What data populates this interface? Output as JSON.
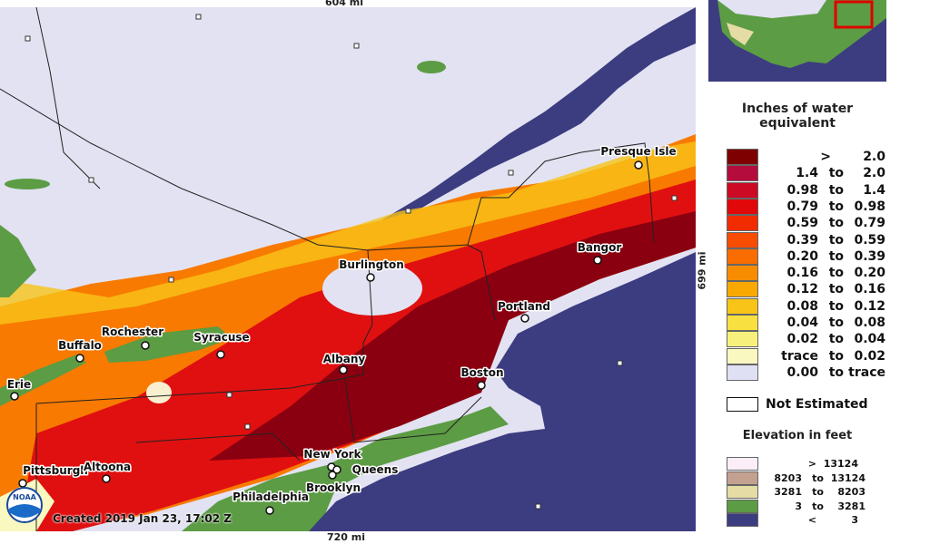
{
  "scale": {
    "top": "604 mi",
    "bottom": "720 mi",
    "right": "699 mi"
  },
  "cities": [
    {
      "label": "Presque Isle"
    },
    {
      "label": "Bangor"
    },
    {
      "label": "Burlington"
    },
    {
      "label": "Portland"
    },
    {
      "label": "Rochester"
    },
    {
      "label": "Syracuse"
    },
    {
      "label": "Buffalo"
    },
    {
      "label": "Albany"
    },
    {
      "label": "Boston"
    },
    {
      "label": "Erie"
    },
    {
      "label": "New York"
    },
    {
      "label": "Queens"
    },
    {
      "label": "Brooklyn"
    },
    {
      "label": "Philadelphia"
    },
    {
      "label": "Pittsburgh"
    },
    {
      "label": "Altoona"
    }
  ],
  "logo": "NOAA",
  "created": "Created 2019 Jan 23, 17:02 Z",
  "legend": {
    "title": "Inches of water equivalent",
    "rows": [
      {
        "parts": [
          ">",
          "2.0"
        ],
        "color": "#7e0000"
      },
      {
        "parts": [
          "1.4",
          "to",
          "2.0"
        ],
        "color": "#b40c3c"
      },
      {
        "parts": [
          "0.98",
          "to",
          "1.4"
        ],
        "color": "#cc0a24"
      },
      {
        "parts": [
          "0.79",
          "to",
          "0.98"
        ],
        "color": "#e00808"
      },
      {
        "parts": [
          "0.59",
          "to",
          "0.79"
        ],
        "color": "#f02c00"
      },
      {
        "parts": [
          "0.39",
          "to",
          "0.59"
        ],
        "color": "#f84c00"
      },
      {
        "parts": [
          "0.20",
          "to",
          "0.39"
        ],
        "color": "#f86c00"
      },
      {
        "parts": [
          "0.16",
          "to",
          "0.20"
        ],
        "color": "#f88c00"
      },
      {
        "parts": [
          "0.12",
          "to",
          "0.16"
        ],
        "color": "#f8a800"
      },
      {
        "parts": [
          "0.08",
          "to",
          "0.12"
        ],
        "color": "#f8c418"
      },
      {
        "parts": [
          "0.04",
          "to",
          "0.08"
        ],
        "color": "#f8e040"
      },
      {
        "parts": [
          "0.02",
          "to",
          "0.04"
        ],
        "color": "#f8f07c"
      },
      {
        "parts": [
          "trace",
          "to",
          "0.02"
        ],
        "color": "#f8f8c0"
      },
      {
        "parts": [
          "0.00",
          "to",
          "trace"
        ],
        "color": "#e0e0f4"
      }
    ],
    "not_estimated": "Not Estimated",
    "elevation_title": "Elevation in feet",
    "elevation_rows": [
      {
        "parts": [
          ">",
          "13124"
        ],
        "color": "#fbeef8"
      },
      {
        "parts": [
          "8203",
          "to",
          "13124"
        ],
        "color": "#c4a090"
      },
      {
        "parts": [
          "3281",
          "to",
          "8203"
        ],
        "color": "#e4dca4"
      },
      {
        "parts": [
          "3",
          "to",
          "3281"
        ],
        "color": "#5c9c44"
      },
      {
        "parts": [
          "<",
          "3"
        ],
        "color": "#3c3c80"
      }
    ]
  }
}
